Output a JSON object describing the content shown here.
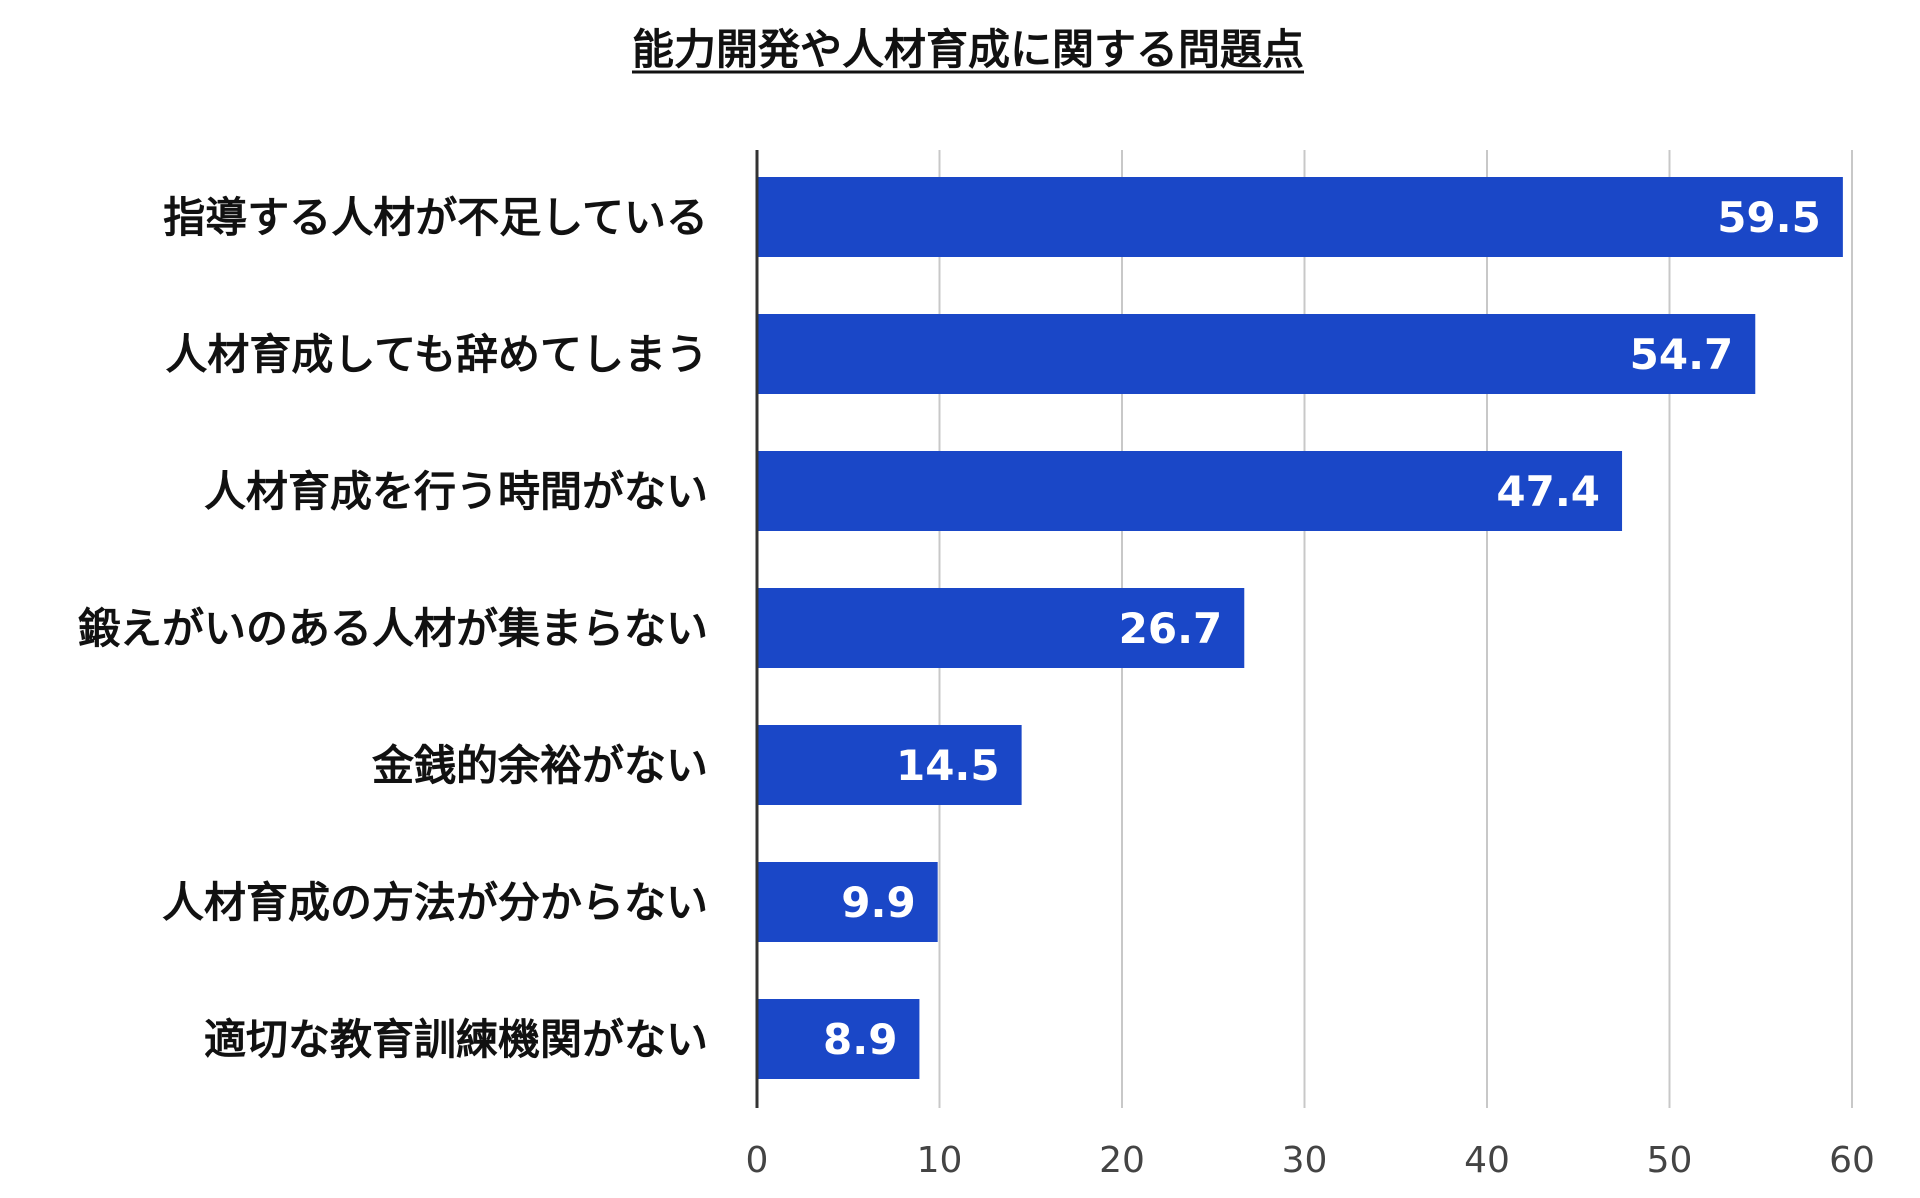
{
  "chart_data": {
    "type": "bar",
    "orientation": "horizontal",
    "title": "能力開発や人材育成に関する問題点",
    "title_underlined": true,
    "categories": [
      "指導する人材が不足している",
      "人材育成しても辞めてしまう",
      "人材育成を行う時間がない",
      "鍛えがいのある人材が集まらない",
      "金銭的余裕がない",
      "人材育成の方法が分からない",
      "適切な教育訓練機関がない"
    ],
    "values": [
      59.5,
      54.7,
      47.4,
      26.7,
      14.5,
      9.9,
      8.9
    ],
    "value_labels": [
      "59.5",
      "54.7",
      "47.4",
      "26.7",
      "14.5",
      "9.9",
      "8.9"
    ],
    "xlim": [
      0,
      60
    ],
    "xticks": [
      "0",
      "10",
      "20",
      "30",
      "40",
      "50",
      "60"
    ],
    "grid": true,
    "legend": "none",
    "bar_color": "#1a47c7",
    "grid_color": "#c8c8c8",
    "axis_color": "#333333"
  }
}
